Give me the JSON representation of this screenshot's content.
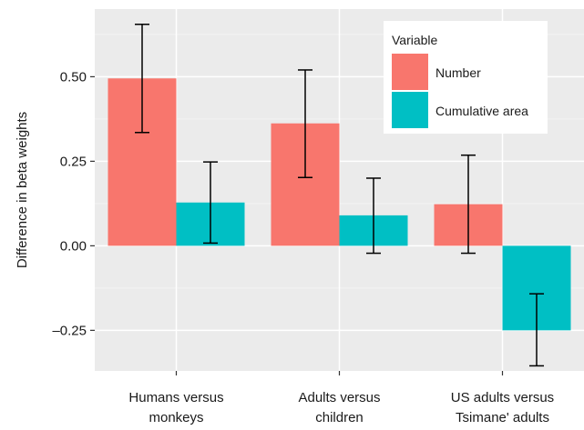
{
  "chart_data": {
    "type": "bar",
    "ylabel": "Difference in beta weights",
    "xlabel": "",
    "ylim": [
      -0.37,
      0.7
    ],
    "yticks": [
      -0.25,
      0.0,
      0.25,
      0.5
    ],
    "ytick_labels": [
      "–0.25",
      "0.00",
      "0.25",
      "0.50"
    ],
    "grid": true,
    "categories": [
      [
        "Humans versus",
        "monkeys"
      ],
      [
        "Adults versus",
        "children"
      ],
      [
        "US adults versus",
        "Tsimane' adults"
      ]
    ],
    "series": [
      {
        "name": "Number",
        "color": "#F8766D",
        "values": [
          0.495,
          0.362,
          0.123
        ],
        "err_low": [
          0.335,
          0.202,
          -0.022
        ],
        "err_high": [
          0.655,
          0.52,
          0.268
        ]
      },
      {
        "name": "Cumulative area",
        "color": "#00BFC4",
        "values": [
          0.128,
          0.09,
          -0.25
        ],
        "err_low": [
          0.008,
          -0.022,
          -0.355
        ],
        "err_high": [
          0.248,
          0.2,
          -0.142
        ]
      }
    ],
    "legend": {
      "title": "Variable",
      "placement": "top-right"
    }
  }
}
